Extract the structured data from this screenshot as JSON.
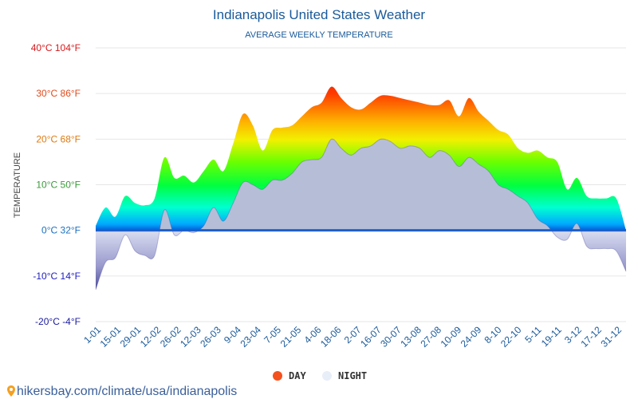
{
  "chart_data": {
    "type": "area",
    "title": "Indianapolis United States Weather",
    "subtitle": "AVERAGE WEEKLY TEMPERATURE",
    "ylabel": "TEMPERATURE",
    "ylim": [
      -20,
      40
    ],
    "y_ticks": [
      {
        "value": 40,
        "label": "40°C 104°F",
        "color": "#d7191c"
      },
      {
        "value": 30,
        "label": "30°C 86°F",
        "color": "#e04a1a"
      },
      {
        "value": 20,
        "label": "20°C 68°F",
        "color": "#e07a10"
      },
      {
        "value": 10,
        "label": "10°C 50°F",
        "color": "#3a9a3a"
      },
      {
        "value": 0,
        "label": "0°C 32°F",
        "color": "#1a70c0"
      },
      {
        "value": -10,
        "label": "-10°C 14°F",
        "color": "#2020c0"
      },
      {
        "value": -20,
        "label": "-20°C -4°F",
        "color": "#1a1aa0"
      }
    ],
    "x_tick_labels": [
      "1-01",
      "15-01",
      "29-01",
      "12-02",
      "26-02",
      "12-03",
      "26-03",
      "9-04",
      "23-04",
      "7-05",
      "21-05",
      "4-06",
      "18-06",
      "2-07",
      "16-07",
      "30-07",
      "13-08",
      "27-08",
      "10-09",
      "24-09",
      "8-10",
      "22-10",
      "5-11",
      "19-11",
      "3-12",
      "17-12",
      "31-12"
    ],
    "series": [
      {
        "name": "DAY",
        "color": "#f4511e",
        "values": [
          1,
          5,
          3,
          7.5,
          6,
          5.5,
          7,
          16,
          11.5,
          12,
          10.5,
          13,
          15.5,
          13,
          19,
          25.5,
          23,
          17.5,
          22,
          22.5,
          23,
          25,
          27,
          28,
          31.5,
          29,
          27,
          26.5,
          28,
          29.5,
          29.5,
          29,
          28.5,
          28,
          27.5,
          27.5,
          28.5,
          25,
          29,
          26,
          24,
          22,
          21,
          18,
          17,
          17.5,
          16,
          15,
          9,
          11.5,
          7.5,
          7,
          7,
          7,
          0
        ]
      },
      {
        "name": "NIGHT",
        "color": "#e8eef8",
        "values": [
          -13,
          -7,
          -6,
          -1,
          -4.5,
          -5.5,
          -5.5,
          4.5,
          -1,
          0,
          -0.5,
          1,
          5,
          2,
          6,
          10.5,
          10,
          9,
          11,
          11,
          12.5,
          15,
          15.5,
          16,
          20,
          18,
          16.5,
          18,
          18.5,
          20,
          19.5,
          18,
          18.5,
          18,
          16,
          17.5,
          16.5,
          14,
          16,
          14.5,
          13,
          10,
          9,
          7.5,
          6,
          2.5,
          1,
          -1.5,
          -2,
          1.5,
          -3.5,
          -4,
          -4,
          -4.5,
          -9
        ]
      }
    ],
    "legend": [
      "DAY",
      "NIGHT"
    ]
  },
  "footer": {
    "source": "hikersbay.com/climate/usa/indianapolis"
  }
}
